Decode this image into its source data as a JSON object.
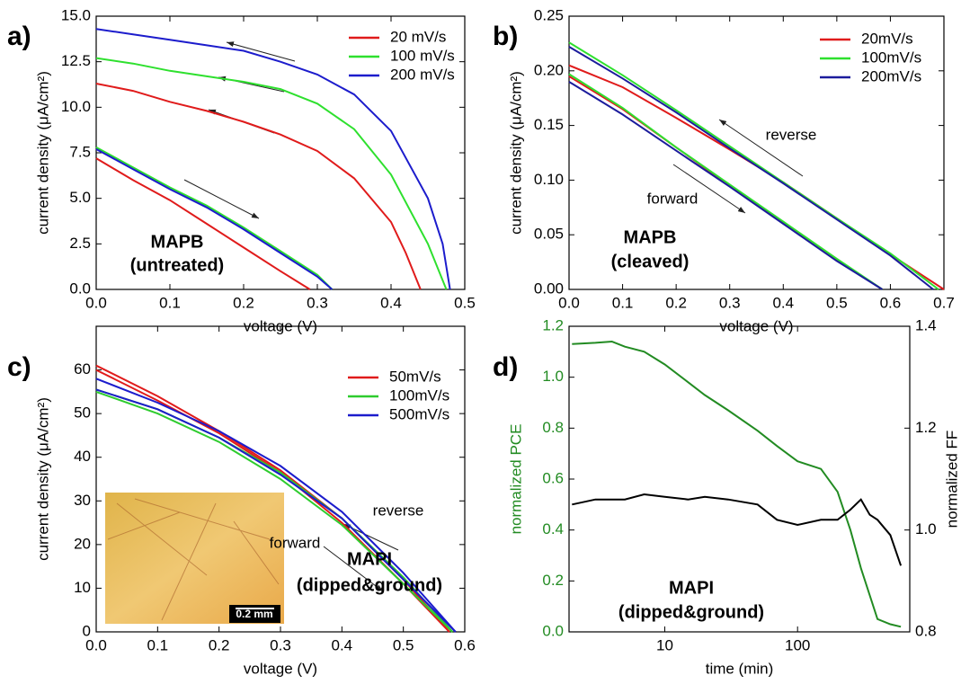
{
  "chart_data": [
    {
      "type": "line",
      "label": "a)",
      "xlabel": "voltage (V)",
      "ylabel": "current density (μA/cm²)",
      "xlim": [
        0,
        0.5
      ],
      "xticks": [
        {
          "value": 0,
          "label": "0.0"
        },
        0.1,
        0.2,
        0.3,
        0.4,
        0.5
      ],
      "ylim": [
        0,
        15
      ],
      "yticks": [
        {
          "value": 0,
          "label": "0.0"
        },
        2.5,
        {
          "value": 5,
          "label": "5.0"
        },
        7.5,
        {
          "value": 10,
          "label": "10.0"
        },
        12.5,
        {
          "value": 15,
          "label": "15.0"
        }
      ],
      "annotations": [
        "MAPB",
        "(untreated)"
      ],
      "series": [
        {
          "name": "20 mV/s",
          "color": "#e01b1b",
          "reverse_x": [
            0,
            0.05,
            0.1,
            0.15,
            0.2,
            0.25,
            0.3,
            0.35,
            0.4,
            0.42,
            0.44
          ],
          "reverse": [
            11.3,
            10.9,
            10.3,
            9.8,
            9.2,
            8.5,
            7.6,
            6.1,
            3.7,
            2.0,
            0
          ],
          "forward_x": [
            0,
            0.05,
            0.1,
            0.15,
            0.2,
            0.25,
            0.29
          ],
          "forward": [
            7.2,
            6.0,
            4.9,
            3.6,
            2.3,
            1.0,
            0
          ]
        },
        {
          "name": "100 mV/s",
          "color": "#2ee02e",
          "reverse_x": [
            0,
            0.05,
            0.1,
            0.15,
            0.2,
            0.25,
            0.3,
            0.35,
            0.4,
            0.45,
            0.475
          ],
          "reverse": [
            12.7,
            12.4,
            12.0,
            11.7,
            11.4,
            11.0,
            10.2,
            8.8,
            6.3,
            2.5,
            0
          ],
          "forward_x": [
            0,
            0.05,
            0.1,
            0.15,
            0.2,
            0.25,
            0.3,
            0.32
          ],
          "forward": [
            7.8,
            6.7,
            5.6,
            4.6,
            3.4,
            2.1,
            0.8,
            0
          ]
        },
        {
          "name": "200 mV/s",
          "color": "#1c1ccc",
          "reverse_x": [
            0,
            0.05,
            0.1,
            0.15,
            0.2,
            0.25,
            0.3,
            0.35,
            0.4,
            0.45,
            0.47,
            0.48
          ],
          "reverse": [
            14.3,
            14.0,
            13.7,
            13.4,
            13.1,
            12.5,
            11.8,
            10.7,
            8.7,
            5.0,
            2.5,
            0
          ],
          "forward_x": [
            0,
            0.05,
            0.1,
            0.15,
            0.2,
            0.25,
            0.3,
            0.32
          ],
          "forward": [
            7.7,
            6.6,
            5.5,
            4.5,
            3.3,
            2.0,
            0.7,
            0
          ]
        }
      ]
    },
    {
      "type": "line",
      "label": "b)",
      "xlabel": "voltage (V)",
      "ylabel": "current density (μA/cm²)",
      "xlim": [
        0,
        0.7
      ],
      "xticks": [
        {
          "value": 0,
          "label": "0.0"
        },
        0.1,
        0.2,
        0.3,
        0.4,
        0.5,
        0.6,
        0.7
      ],
      "ylim": [
        0,
        0.25
      ],
      "yticks": [
        {
          "value": 0,
          "label": "0.00"
        },
        0.05,
        {
          "value": 0.1,
          "label": "0.10"
        },
        0.15,
        {
          "value": 0.2,
          "label": "0.20"
        },
        0.25
      ],
      "annotations": [
        "reverse",
        "forward",
        "MAPB",
        "(cleaved)"
      ],
      "series": [
        {
          "name": "20mV/s",
          "color": "#e01b1b",
          "reverse_x": [
            0,
            0.1,
            0.2,
            0.3,
            0.4,
            0.5,
            0.6,
            0.7
          ],
          "reverse": [
            0.205,
            0.185,
            0.157,
            0.128,
            0.098,
            0.065,
            0.032,
            0
          ],
          "forward_x": [
            0,
            0.1,
            0.2,
            0.3,
            0.4,
            0.5,
            0.585
          ],
          "forward": [
            0.195,
            0.165,
            0.13,
            0.095,
            0.061,
            0.027,
            0
          ]
        },
        {
          "name": "100mV/s",
          "color": "#2ee02e",
          "reverse_x": [
            0,
            0.1,
            0.2,
            0.3,
            0.4,
            0.5,
            0.6,
            0.69
          ],
          "reverse": [
            0.226,
            0.196,
            0.164,
            0.131,
            0.098,
            0.065,
            0.033,
            0
          ],
          "forward_x": [
            0,
            0.1,
            0.2,
            0.3,
            0.4,
            0.5,
            0.585
          ],
          "forward": [
            0.197,
            0.166,
            0.13,
            0.096,
            0.062,
            0.028,
            0
          ]
        },
        {
          "name": "200mV/s",
          "color": "#1c1c9c",
          "reverse_x": [
            0,
            0.1,
            0.2,
            0.3,
            0.4,
            0.5,
            0.6,
            0.68
          ],
          "reverse": [
            0.222,
            0.193,
            0.162,
            0.129,
            0.097,
            0.064,
            0.031,
            0
          ],
          "forward_x": [
            0,
            0.1,
            0.2,
            0.3,
            0.4,
            0.5,
            0.585
          ],
          "forward": [
            0.19,
            0.16,
            0.127,
            0.094,
            0.06,
            0.026,
            0
          ]
        }
      ]
    },
    {
      "type": "line",
      "label": "c)",
      "xlabel": "voltage (V)",
      "ylabel": "current density (μA/cm²)",
      "xlim": [
        0,
        0.6
      ],
      "xticks": [
        {
          "value": 0,
          "label": "0.0"
        },
        0.1,
        0.2,
        0.3,
        0.4,
        0.5,
        0.6
      ],
      "ylim": [
        0,
        70
      ],
      "yticks": [
        0,
        10,
        20,
        30,
        40,
        50,
        60
      ],
      "annotations": [
        "reverse",
        "forward",
        "MAPI",
        "(dipped&ground)"
      ],
      "inset": {
        "scale_bar": "0.2 mm"
      },
      "series": [
        {
          "name": "50mV/s",
          "color": "#e01b1b",
          "reverse_x": [
            0,
            0.1,
            0.2,
            0.3,
            0.4,
            0.5,
            0.575
          ],
          "reverse": [
            61,
            54,
            46,
            37,
            26,
            12,
            0
          ],
          "forward_x": [
            0,
            0.1,
            0.2,
            0.3,
            0.4,
            0.5,
            0.575
          ],
          "forward": [
            60,
            53,
            45.5,
            36.5,
            25,
            11,
            0
          ]
        },
        {
          "name": "100mV/s",
          "color": "#2ecc2e",
          "reverse_x": [
            0,
            0.1,
            0.2,
            0.3,
            0.4,
            0.5,
            0.58
          ],
          "reverse": [
            55.5,
            51,
            44.5,
            36.5,
            26,
            12.5,
            0
          ],
          "forward_x": [
            0,
            0.1,
            0.2,
            0.3,
            0.4,
            0.5,
            0.58
          ],
          "forward": [
            55,
            50,
            43.5,
            35,
            24.5,
            11,
            0
          ]
        },
        {
          "name": "500mV/s",
          "color": "#1c1ccc",
          "reverse_x": [
            0,
            0.1,
            0.2,
            0.3,
            0.4,
            0.5,
            0.585
          ],
          "reverse": [
            58,
            52.5,
            46,
            38,
            27.5,
            13.5,
            0
          ],
          "forward_x": [
            0,
            0.1,
            0.2,
            0.3,
            0.4,
            0.5,
            0.585
          ],
          "forward": [
            55.5,
            51,
            44.5,
            36,
            26,
            12,
            0
          ]
        }
      ]
    },
    {
      "type": "line",
      "label": "d)",
      "xlabel": "time (min)",
      "ylabel": "normalized PCE",
      "y2label": "normalized FF",
      "xscale": "log",
      "xlim": [
        1.9,
        700
      ],
      "xticks": [
        10,
        100
      ],
      "ylim": [
        0,
        1.2
      ],
      "yticks": [
        {
          "value": 0,
          "label": "0.0"
        },
        0.2,
        0.4,
        0.6,
        0.8,
        {
          "value": 1,
          "label": "1.0"
        },
        1.2
      ],
      "y2lim": [
        0.8,
        1.4
      ],
      "y2ticks": [
        0.8,
        {
          "value": 1,
          "label": "1.0"
        },
        1.2,
        1.4
      ],
      "annotations": [
        "MAPI",
        "(dipped&ground)"
      ],
      "series": [
        {
          "color": "#228b22",
          "x": [
            2,
            3,
            4,
            5,
            7,
            10,
            15,
            20,
            30,
            50,
            70,
            100,
            150,
            200,
            250,
            300,
            400,
            500,
            600
          ],
          "values": [
            1.13,
            1.135,
            1.14,
            1.12,
            1.1,
            1.05,
            0.98,
            0.93,
            0.87,
            0.79,
            0.73,
            0.67,
            0.64,
            0.55,
            0.4,
            0.25,
            0.05,
            0.03,
            0.02
          ]
        },
        {
          "color": "#000000",
          "axis": "y2",
          "x": [
            2,
            3,
            4,
            5,
            7,
            10,
            15,
            20,
            30,
            50,
            70,
            100,
            150,
            200,
            250,
            300,
            350,
            400,
            500,
            600
          ],
          "values": [
            1.05,
            1.06,
            1.06,
            1.06,
            1.07,
            1.065,
            1.06,
            1.065,
            1.06,
            1.05,
            1.02,
            1.01,
            1.02,
            1.02,
            1.04,
            1.06,
            1.03,
            1.02,
            0.99,
            0.93
          ]
        }
      ]
    }
  ]
}
